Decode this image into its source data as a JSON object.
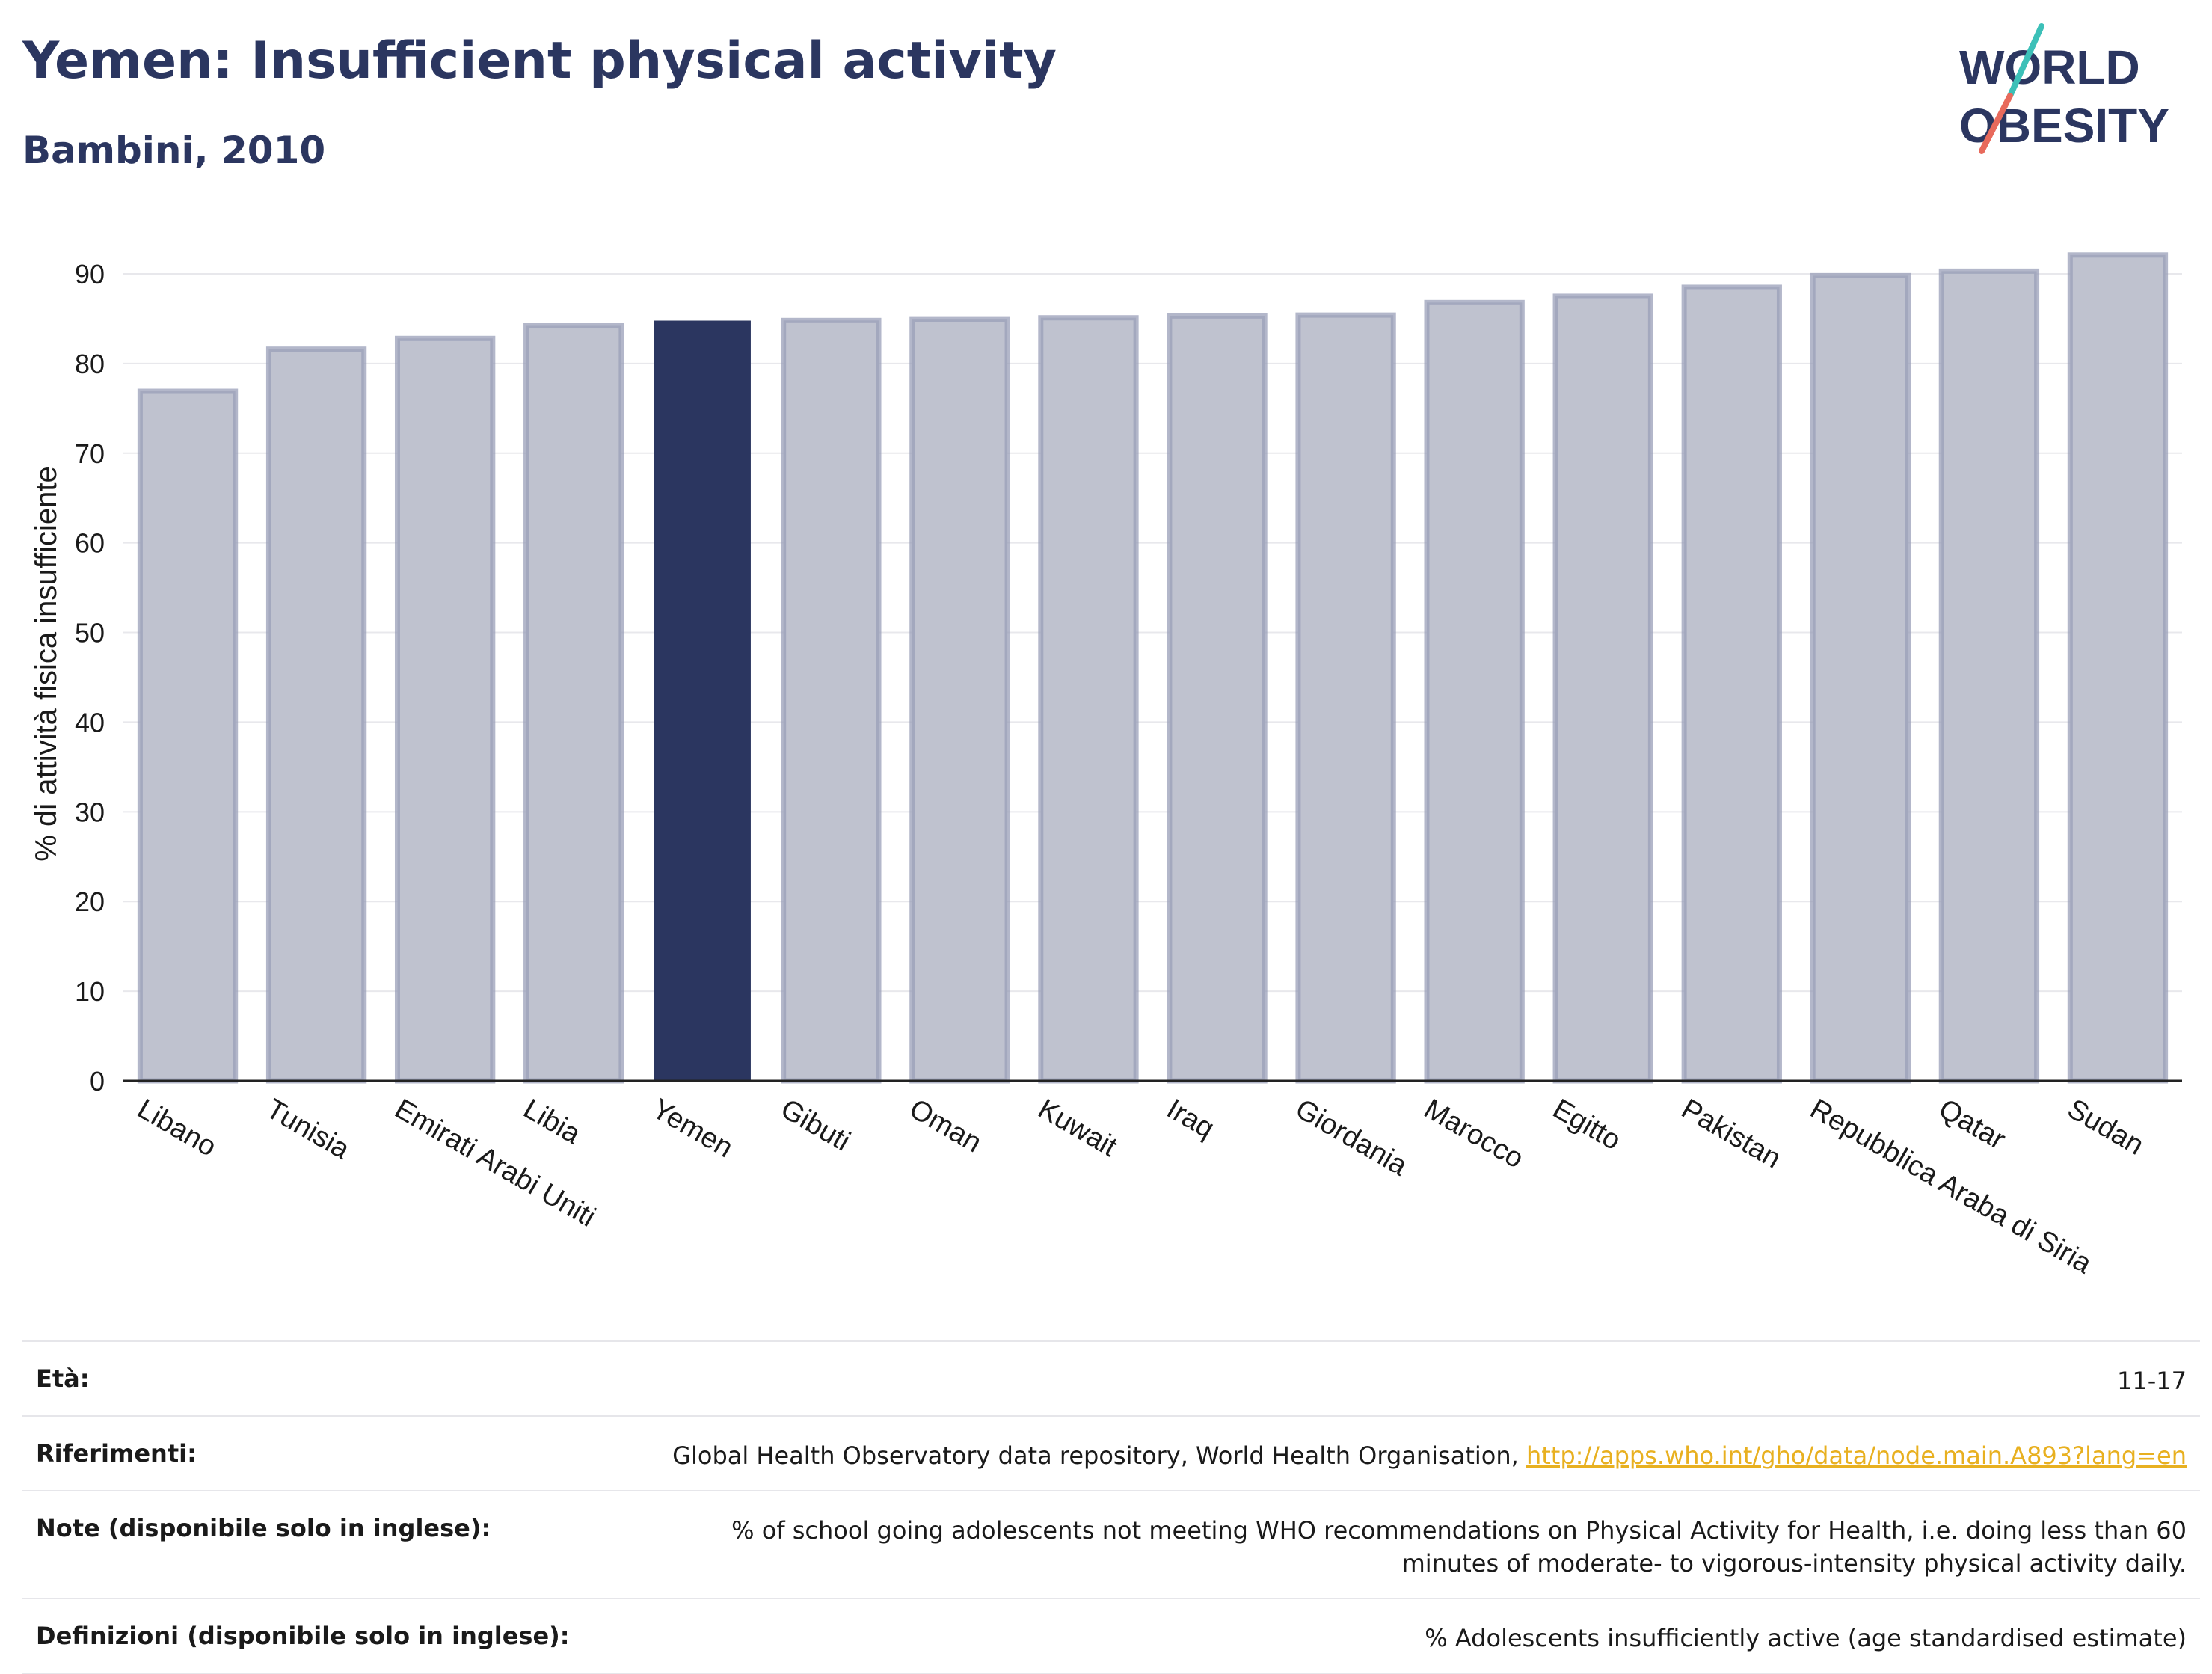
{
  "header": {
    "title": "Yemen: Insufficient physical activity",
    "subtitle": "Bambini, 2010"
  },
  "logo": {
    "line1": "WORLD",
    "line2": "OBESITY",
    "accent_teal": "#3cc0b8",
    "accent_coral": "#e86a5c"
  },
  "colors": {
    "highlight_bar": "#2b3660",
    "other_bar": "#bfc2cf",
    "bar_edge": "#9a9fb8",
    "text": "#2b3660"
  },
  "chart_data": {
    "type": "bar",
    "ylabel": "% di attività fisica insufficiente",
    "xlabel": "",
    "ylim": [
      0,
      93
    ],
    "yticks": [
      0,
      10,
      20,
      30,
      40,
      50,
      60,
      70,
      80,
      90
    ],
    "grid": true,
    "highlight": "Yemen",
    "categories": [
      "Libano",
      "Tunisia",
      "Emirati Arabi Uniti",
      "Libia",
      "Yemen",
      "Gibuti",
      "Oman",
      "Kuwait",
      "Iraq",
      "Giordania",
      "Marocco",
      "Egitto",
      "Pakistan",
      "Repubblica Araba di Siria",
      "Qatar",
      "Sudan"
    ],
    "values": [
      76.9,
      81.6,
      82.8,
      84.2,
      84.7,
      84.8,
      84.9,
      85.1,
      85.3,
      85.4,
      86.8,
      87.5,
      88.5,
      89.8,
      90.3,
      92.1
    ]
  },
  "info": [
    {
      "label": "Età:",
      "value": "11-17"
    },
    {
      "label": "Riferimenti:",
      "value": "Global Health Observatory data repository, World Health Organisation, ",
      "link": "http://apps.who.int/gho/data/node.main.A893?lang=en"
    },
    {
      "label": "Note (disponibile solo in inglese):",
      "value": "% of school going adolescents not meeting WHO recommendations on Physical Activity for Health, i.e. doing less than 60 minutes of moderate- to vigorous-intensity physical activity daily."
    },
    {
      "label": "Definizioni (disponibile solo in inglese):",
      "value": "% Adolescents insufficiently active (age standardised estimate)"
    }
  ]
}
